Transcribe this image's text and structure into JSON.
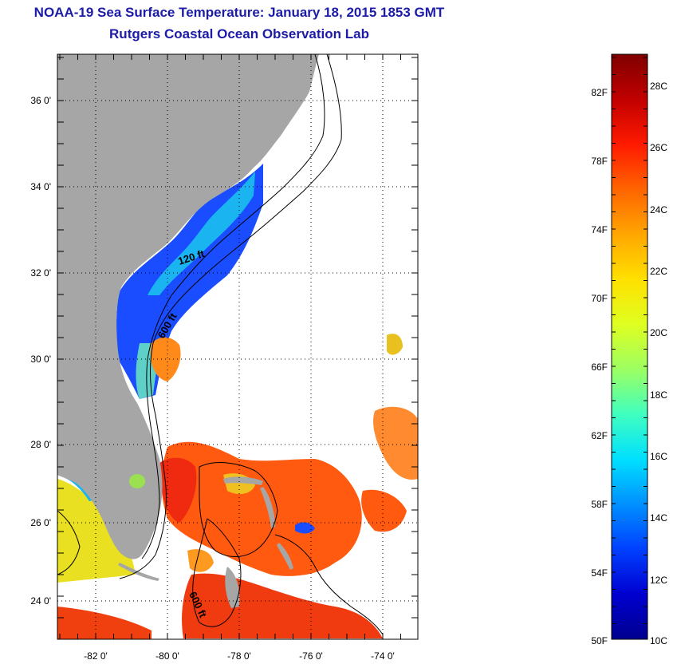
{
  "header": {
    "title": "NOAA-19 Sea Surface Temperature:  January 18, 2015 1853 GMT",
    "subtitle": "Rutgers Coastal Ocean Observation Lab"
  },
  "map": {
    "lat_labels": [
      "36 0'",
      "34 0'",
      "32 0'",
      "30 0'",
      "28 0'",
      "26 0'",
      "24 0'"
    ],
    "lon_labels": [
      "-82 0'",
      "-80 0'",
      "-78 0'",
      "-76 0'",
      "-74 0'"
    ],
    "contour_labels": [
      "120 ft",
      "600 ft",
      "600 ft"
    ],
    "land_color": "#a6a6a6",
    "ocean_color": "#ffffff"
  },
  "colorbar": {
    "fahrenheit_labels": [
      "82F",
      "78F",
      "74F",
      "70F",
      "66F",
      "62F",
      "58F",
      "54F",
      "50F"
    ],
    "celsius_labels": [
      "28C",
      "26C",
      "24C",
      "22C",
      "20C",
      "18C",
      "16C",
      "14C",
      "12C",
      "10C"
    ],
    "colors_top_to_bottom": [
      "#800000",
      "#c00000",
      "#ff1a00",
      "#ff6400",
      "#ffa600",
      "#ffe000",
      "#dfff20",
      "#9dff62",
      "#40ffbf",
      "#00e0ff",
      "#0090ff",
      "#0040ff",
      "#0000d0",
      "#00008f"
    ]
  }
}
